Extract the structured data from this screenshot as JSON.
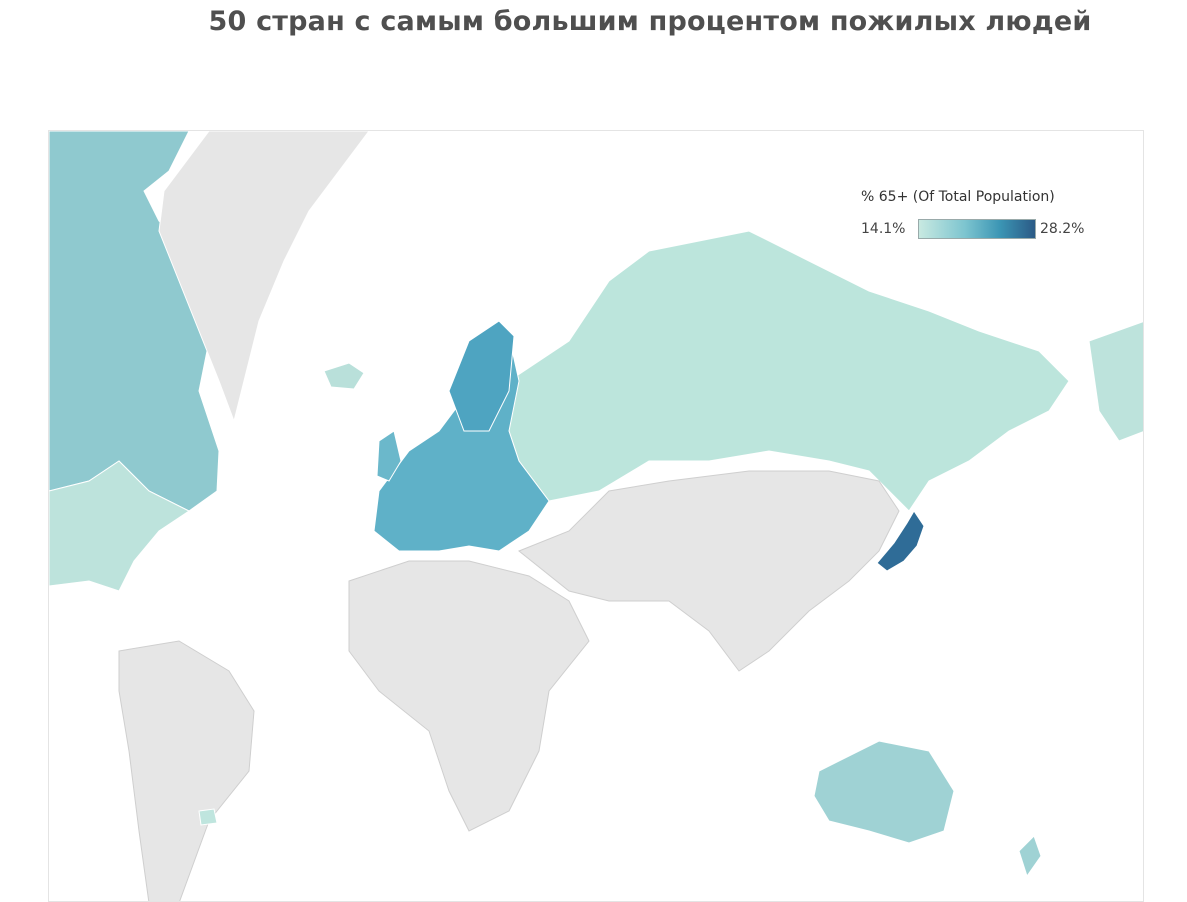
{
  "title": "50 стран с самым большим процентом пожилых людей",
  "legend": {
    "title": "% 65+ (Of Total Population)",
    "min_label": "14.1%",
    "max_label": "28.2%",
    "min_value": 14.1,
    "max_value": 28.2
  },
  "colors": {
    "no_data": "#e6e6e6",
    "border": "#ffffff",
    "scale_low": "#c8e9e1",
    "scale_mid": "#7cc4cf",
    "scale_high": "#3b95b4",
    "scale_top": "#2b5a86"
  },
  "regions": [
    {
      "name": "Greenland",
      "shaded": false
    },
    {
      "name": "Canada",
      "shaded": true,
      "level": "mid"
    },
    {
      "name": "United States",
      "shaded": true,
      "level": "low"
    },
    {
      "name": "Russia",
      "shaded": true,
      "level": "low"
    },
    {
      "name": "Japan",
      "shaded": true,
      "level": "top"
    },
    {
      "name": "Australia",
      "shaded": true,
      "level": "mid"
    },
    {
      "name": "New Zealand",
      "shaded": true,
      "level": "mid"
    },
    {
      "name": "Uruguay",
      "shaded": true,
      "level": "low"
    },
    {
      "name": "Western Europe",
      "shaded": true,
      "level": "high"
    },
    {
      "name": "Africa",
      "shaded": false
    },
    {
      "name": "Asia",
      "shaded": false
    },
    {
      "name": "South America",
      "shaded": false
    }
  ]
}
